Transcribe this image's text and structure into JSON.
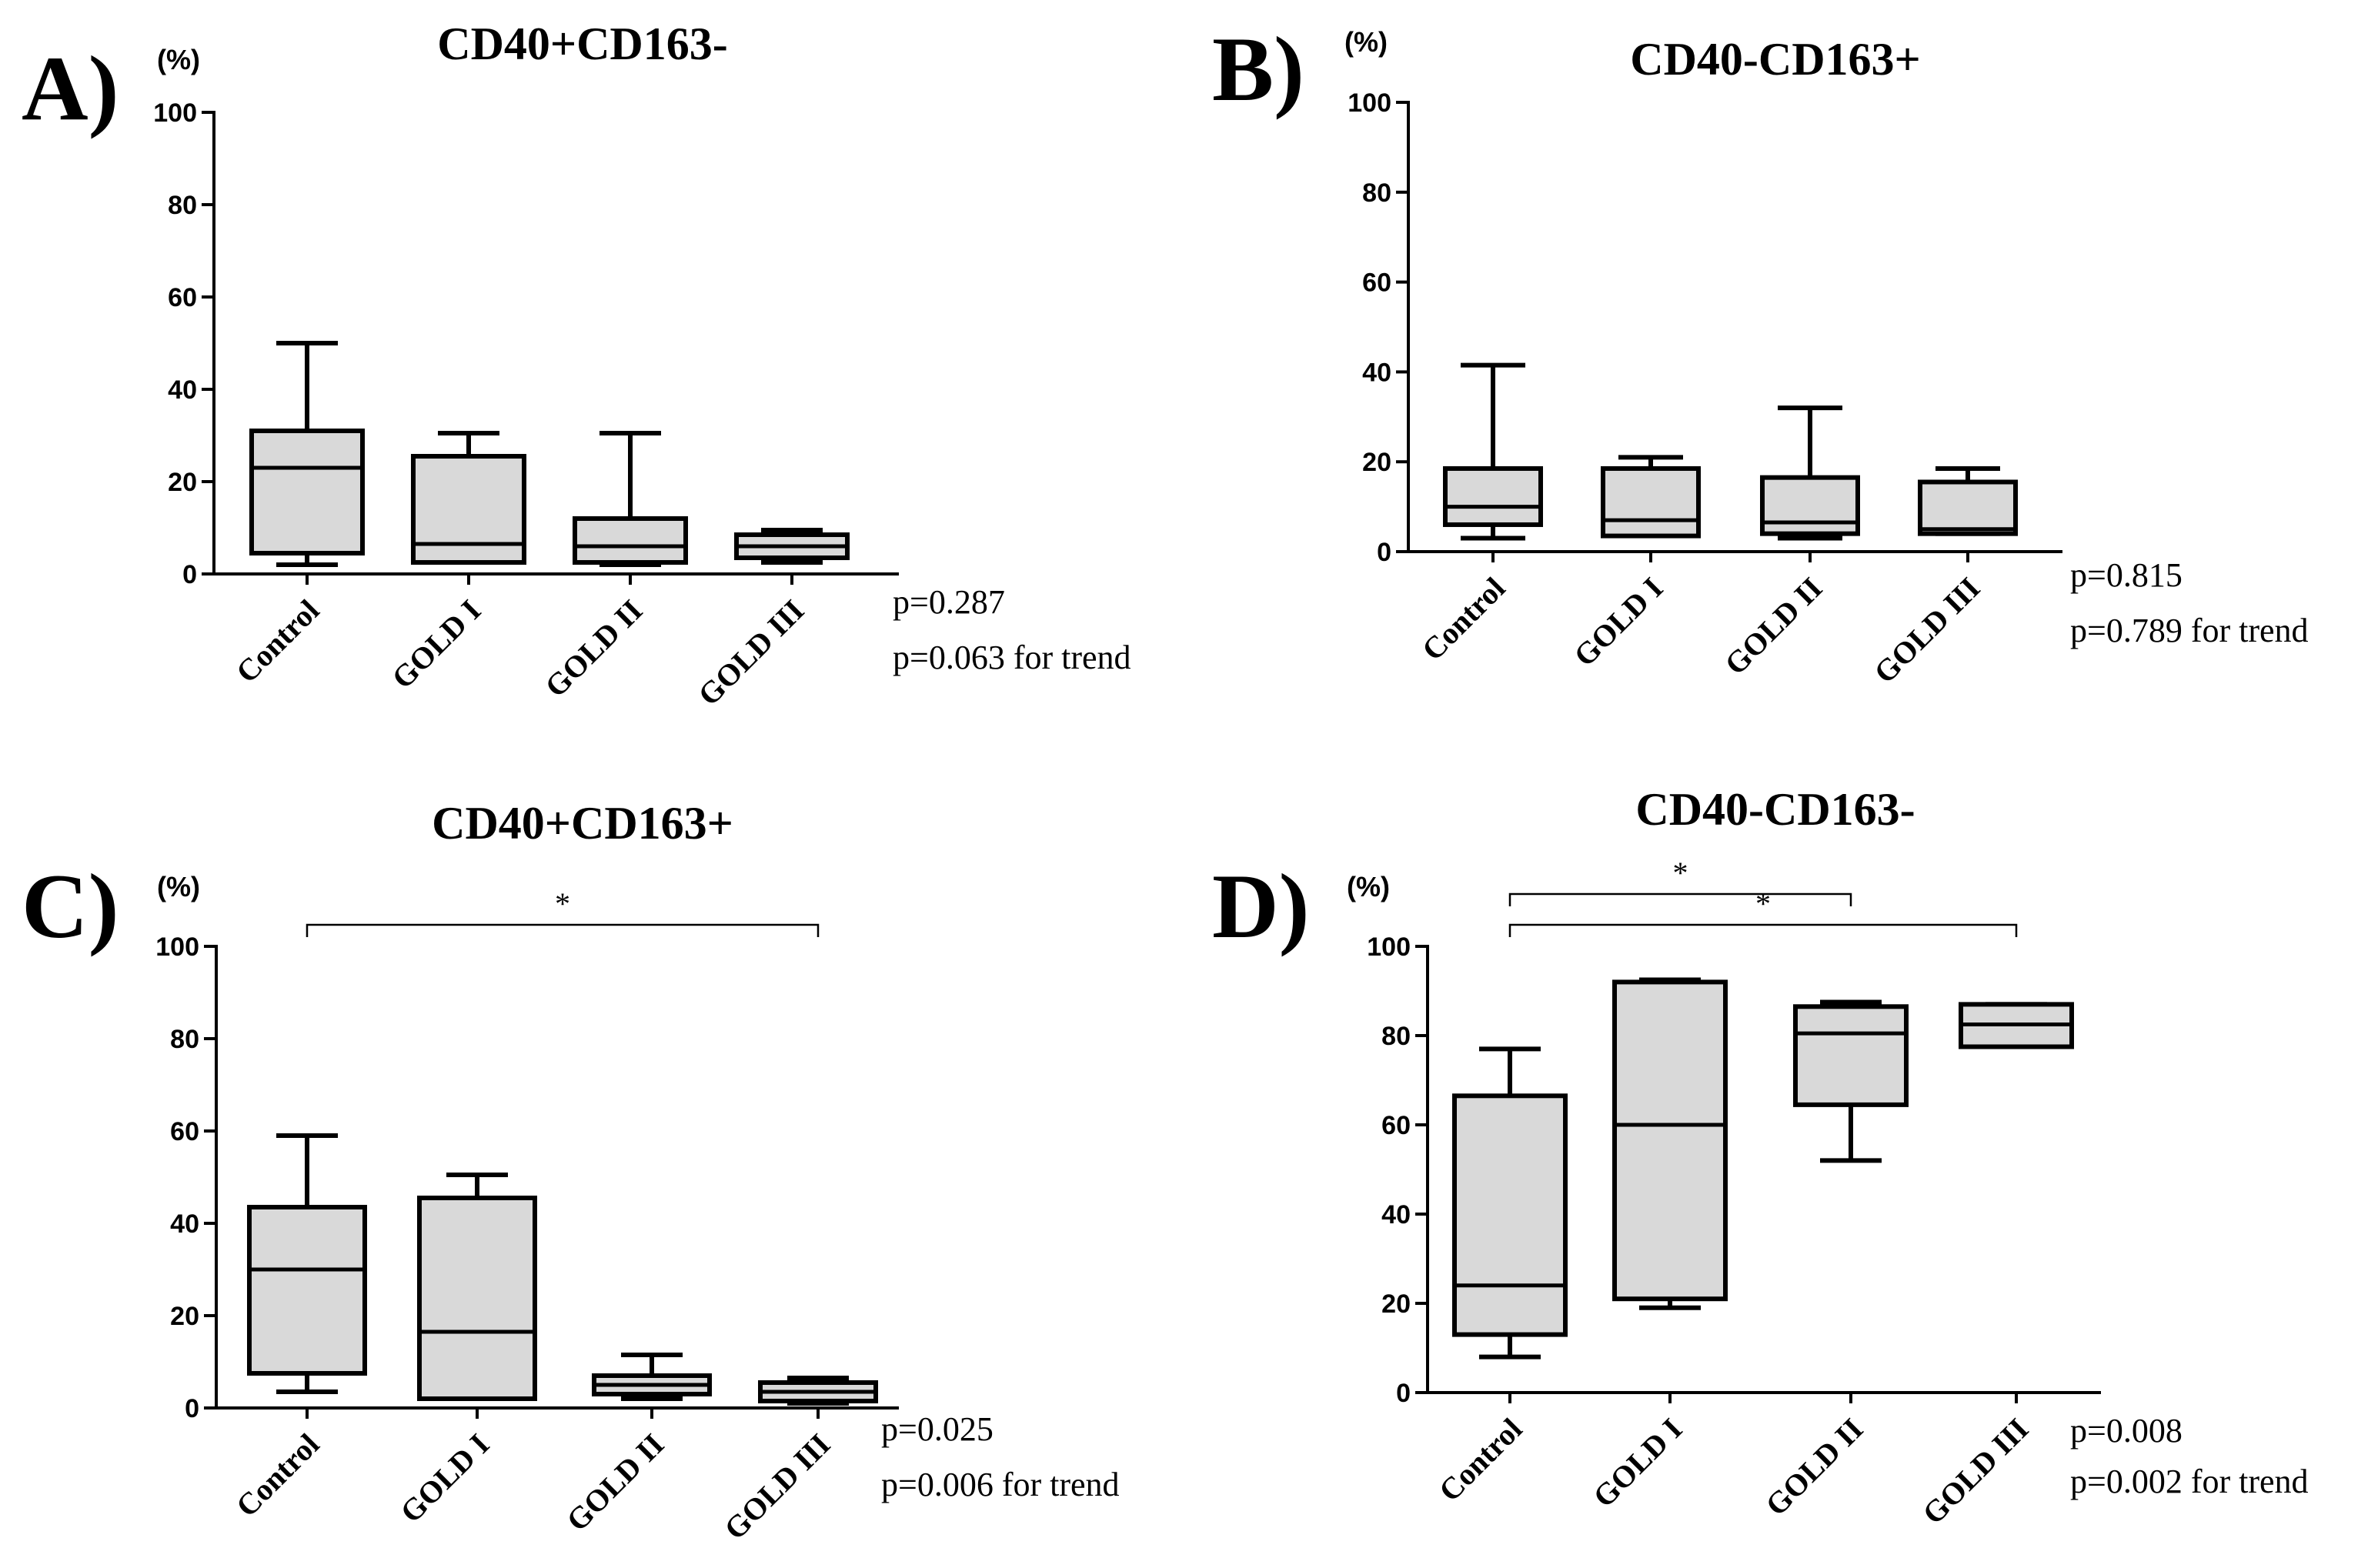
{
  "chart_data": [
    {
      "type": "box",
      "panel_label": "A)",
      "title": "CD40+CD163-",
      "unit_label": "(%)",
      "ylim": [
        0,
        100
      ],
      "yticks": [
        0,
        20,
        40,
        60,
        80,
        100
      ],
      "yticks_text": [
        "0",
        "20",
        "40",
        "60",
        "80",
        "100"
      ],
      "categories": [
        "Control",
        "GOLD I",
        "GOLD II",
        "GOLD III"
      ],
      "boxes": [
        {
          "min": 2,
          "q1": 4.5,
          "median": 23,
          "q3": 31,
          "max": 50
        },
        {
          "min": 2.5,
          "q1": 2.5,
          "median": 6.5,
          "q3": 25.5,
          "max": 30.5
        },
        {
          "min": 2,
          "q1": 2.5,
          "median": 6,
          "q3": 12,
          "max": 30.5
        },
        {
          "min": 2.5,
          "q1": 3.5,
          "median": 6,
          "q3": 8.5,
          "max": 9.5
        }
      ],
      "p_values": [
        "p=0.287",
        "p=0.063 for trend"
      ],
      "significance": []
    },
    {
      "type": "box",
      "panel_label": "B)",
      "title": "CD40-CD163+",
      "unit_label": "(%)",
      "ylim": [
        0,
        100
      ],
      "yticks": [
        0,
        20,
        40,
        60,
        80,
        100
      ],
      "yticks_text": [
        "0",
        "20",
        "40",
        "60",
        "80",
        "100"
      ],
      "categories": [
        "Control",
        "GOLD I",
        "GOLD II",
        "GOLD III"
      ],
      "boxes": [
        {
          "min": 3,
          "q1": 6,
          "median": 10,
          "q3": 18.5,
          "max": 41.5
        },
        {
          "min": 3.5,
          "q1": 3.5,
          "median": 7,
          "q3": 18.5,
          "max": 21
        },
        {
          "min": 3,
          "q1": 4,
          "median": 6.5,
          "q3": 16.5,
          "max": 32
        },
        {
          "min": 4,
          "q1": 4,
          "median": 5,
          "q3": 15.5,
          "max": 18.5
        }
      ],
      "p_values": [
        "p=0.815",
        "p=0.789 for trend"
      ],
      "significance": []
    },
    {
      "type": "box",
      "panel_label": "C)",
      "title": "CD40+CD163+",
      "unit_label": "(%)",
      "ylim": [
        0,
        100
      ],
      "yticks": [
        0,
        20,
        40,
        60,
        80,
        100
      ],
      "yticks_text": [
        "0",
        "20",
        "40",
        "60",
        "80",
        "100"
      ],
      "categories": [
        "Control",
        "GOLD I",
        "GOLD II",
        "GOLD III"
      ],
      "boxes": [
        {
          "min": 3.5,
          "q1": 7.5,
          "median": 30,
          "q3": 43.5,
          "max": 59
        },
        {
          "min": 2,
          "q1": 2,
          "median": 16.5,
          "q3": 45.5,
          "max": 50.5
        },
        {
          "min": 2,
          "q1": 3,
          "median": 5,
          "q3": 7,
          "max": 11.5
        },
        {
          "min": 1,
          "q1": 1.5,
          "median": 3.5,
          "q3": 5.5,
          "max": 6.5
        }
      ],
      "p_values": [
        "p=0.025",
        "p=0.006 for trend"
      ],
      "significance": [
        {
          "from": 0,
          "to": 3,
          "label": "*",
          "level": 0
        }
      ]
    },
    {
      "type": "box",
      "panel_label": "D)",
      "title": "CD40-CD163-",
      "unit_label": "(%)",
      "ylim": [
        0,
        100
      ],
      "yticks": [
        0,
        20,
        40,
        60,
        80,
        100
      ],
      "yticks_text": [
        "0",
        "20",
        "40",
        "60",
        "80",
        "100"
      ],
      "categories": [
        "Control",
        "GOLD I",
        "GOLD II",
        "GOLD III"
      ],
      "boxes": [
        {
          "min": 8,
          "q1": 13,
          "median": 24,
          "q3": 66.5,
          "max": 77
        },
        {
          "min": 19,
          "q1": 21,
          "median": 60,
          "q3": 92,
          "max": 92.5
        },
        {
          "min": 52,
          "q1": 64.5,
          "median": 80.5,
          "q3": 86.5,
          "max": 87.5
        },
        {
          "min": 77.5,
          "q1": 77.5,
          "median": 82.5,
          "q3": 87,
          "max": 87
        }
      ],
      "p_values": [
        "p=0.008",
        "p=0.002 for trend"
      ],
      "significance": [
        {
          "from": 0,
          "to": 2,
          "label": "*",
          "level": 1
        },
        {
          "from": 0,
          "to": 3,
          "label": "*",
          "level": 0
        }
      ]
    }
  ]
}
